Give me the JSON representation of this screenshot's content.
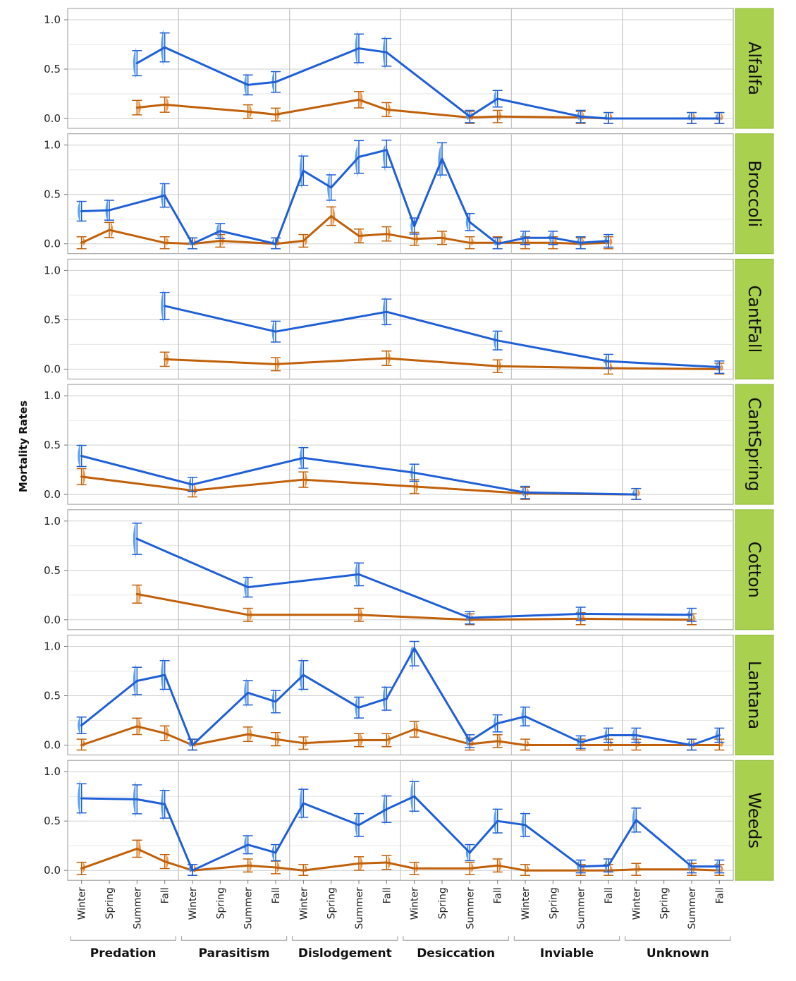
{
  "chart_data": {
    "type": "line",
    "ylabel": "Mortality Rates",
    "ylim": [
      0,
      1.0
    ],
    "y_ticks": [
      "0.0",
      "0.5",
      "1.0"
    ],
    "grid": true,
    "x_causes": [
      "Predation",
      "Parasitism",
      "Dislodgement",
      "Desiccation",
      "Inviable",
      "Unknown"
    ],
    "x_seasons": [
      "Winter",
      "Spring",
      "Summer",
      "Fall"
    ],
    "colors": {
      "series_a": "#1f5fd6",
      "series_b": "#c0600a",
      "violin_a": "#4a97f0",
      "violin_b": "#f08c2e",
      "strip": "#a9d14f"
    },
    "panels": [
      {
        "label": "Alfalfa",
        "series_a": [
          null,
          null,
          0.56,
          0.72,
          null,
          null,
          0.34,
          0.37,
          null,
          null,
          0.71,
          0.67,
          null,
          null,
          0.02,
          0.2,
          null,
          null,
          0.02,
          0.0,
          null,
          null,
          0.0,
          0.0
        ],
        "series_b": [
          null,
          null,
          0.11,
          0.14,
          null,
          null,
          0.07,
          0.04,
          null,
          null,
          0.19,
          0.09,
          null,
          null,
          0.01,
          0.02,
          null,
          null,
          0.01,
          0.0,
          null,
          null,
          0.0,
          0.0
        ]
      },
      {
        "label": "Broccoli",
        "series_a": [
          0.33,
          0.34,
          null,
          0.49,
          0.0,
          0.13,
          null,
          0.0,
          0.74,
          0.57,
          0.88,
          0.95,
          0.18,
          0.86,
          0.22,
          0.0,
          0.06,
          0.06,
          0.01,
          0.03,
          null,
          null,
          null,
          null
        ],
        "series_b": [
          0.01,
          0.14,
          null,
          0.01,
          0.0,
          0.03,
          null,
          0.0,
          0.03,
          0.28,
          0.08,
          0.1,
          0.05,
          0.06,
          0.01,
          0.01,
          0.01,
          0.01,
          0.0,
          0.01,
          null,
          null,
          null,
          null
        ]
      },
      {
        "label": "CantFall",
        "series_a": [
          null,
          null,
          null,
          0.64,
          null,
          null,
          null,
          0.38,
          null,
          null,
          null,
          0.58,
          null,
          null,
          null,
          0.29,
          null,
          null,
          null,
          0.08,
          null,
          null,
          null,
          0.02
        ],
        "series_b": [
          null,
          null,
          null,
          0.1,
          null,
          null,
          null,
          0.05,
          null,
          null,
          null,
          0.11,
          null,
          null,
          null,
          0.03,
          null,
          null,
          null,
          0.01,
          null,
          null,
          null,
          0.0
        ]
      },
      {
        "label": "CantSpring",
        "series_a": [
          0.39,
          null,
          null,
          null,
          0.1,
          null,
          null,
          null,
          0.37,
          null,
          null,
          null,
          0.22,
          null,
          null,
          null,
          0.02,
          null,
          null,
          null,
          0.0,
          null,
          null,
          null
        ],
        "series_b": [
          0.18,
          null,
          null,
          null,
          0.04,
          null,
          null,
          null,
          0.15,
          null,
          null,
          null,
          0.08,
          null,
          null,
          null,
          0.01,
          null,
          null,
          null,
          0.0,
          null,
          null,
          null
        ]
      },
      {
        "label": "Cotton",
        "series_a": [
          null,
          null,
          0.82,
          null,
          null,
          null,
          0.33,
          null,
          null,
          null,
          0.46,
          null,
          null,
          null,
          0.02,
          null,
          null,
          null,
          0.06,
          null,
          null,
          null,
          0.05,
          null
        ],
        "series_b": [
          null,
          null,
          0.26,
          null,
          null,
          null,
          0.05,
          null,
          null,
          null,
          0.05,
          null,
          null,
          null,
          0.0,
          null,
          null,
          null,
          0.01,
          null,
          null,
          null,
          0.0,
          null
        ]
      },
      {
        "label": "Lantana",
        "series_a": [
          0.2,
          null,
          0.65,
          0.71,
          0.0,
          null,
          0.53,
          0.44,
          0.71,
          null,
          0.38,
          0.47,
          0.98,
          null,
          0.04,
          0.22,
          0.29,
          null,
          0.03,
          0.1,
          0.1,
          null,
          0.0,
          0.1
        ],
        "series_b": [
          0.0,
          null,
          0.19,
          0.12,
          0.0,
          null,
          0.11,
          0.06,
          0.02,
          null,
          0.05,
          0.05,
          0.16,
          null,
          0.01,
          0.04,
          0.0,
          null,
          0.0,
          0.0,
          0.0,
          null,
          0.0,
          0.0
        ]
      },
      {
        "label": "Weeds",
        "series_a": [
          0.73,
          null,
          0.72,
          0.67,
          0.0,
          null,
          0.26,
          0.18,
          0.68,
          null,
          0.46,
          0.62,
          0.75,
          null,
          0.18,
          0.5,
          0.46,
          null,
          0.04,
          0.05,
          0.51,
          null,
          0.04,
          0.04
        ],
        "series_b": [
          0.02,
          null,
          0.22,
          0.09,
          0.0,
          null,
          0.05,
          0.03,
          0.0,
          null,
          0.07,
          0.08,
          0.02,
          null,
          0.02,
          0.05,
          0.0,
          null,
          0.0,
          0.0,
          0.01,
          null,
          0.01,
          0.0
        ]
      }
    ]
  }
}
